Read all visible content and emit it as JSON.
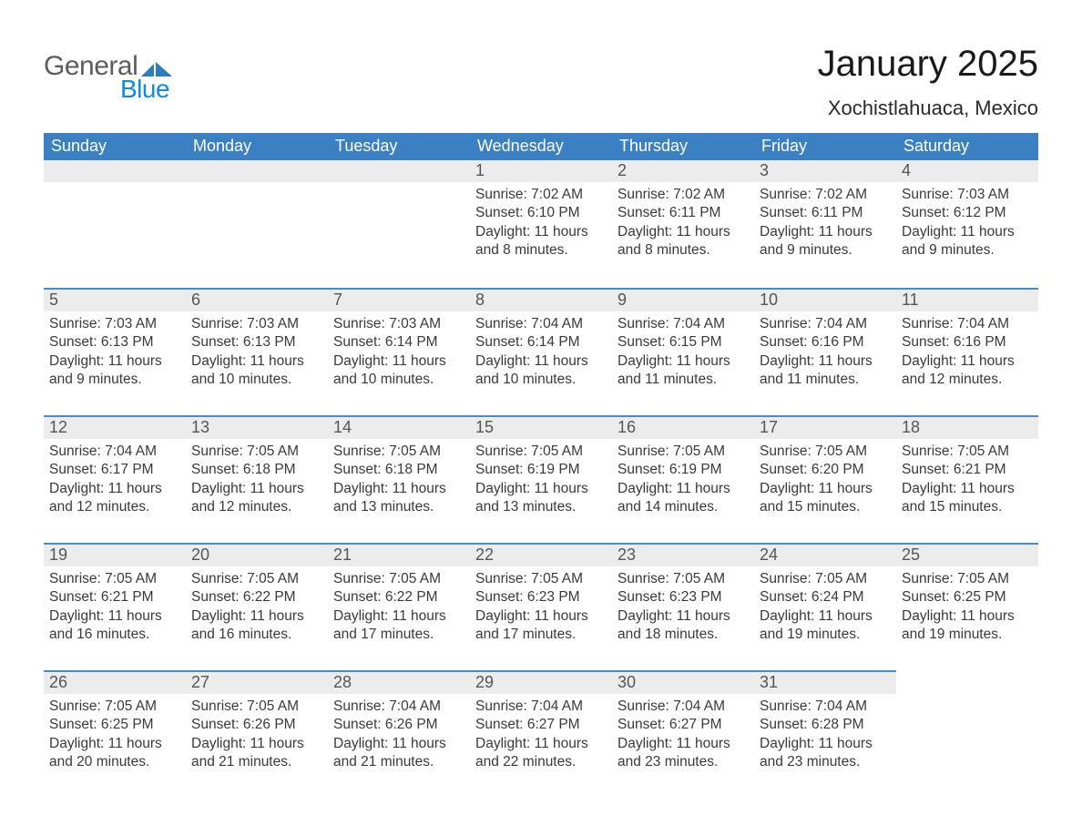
{
  "logo": {
    "text1": "General",
    "text2": "Blue"
  },
  "header": {
    "month_title": "January 2025",
    "location": "Xochistlahuaca, Mexico"
  },
  "colors": {
    "header_blue": "#3a80c3",
    "row_top_line": "#4a8acb",
    "row_band": "#ececec",
    "logo_blue": "#1189df",
    "text_dark": "#2a2a2a",
    "background": "#ffffff"
  },
  "calendar": {
    "day_headers": [
      "Sunday",
      "Monday",
      "Tuesday",
      "Wednesday",
      "Thursday",
      "Friday",
      "Saturday"
    ],
    "weeks": [
      [
        {
          "day": "",
          "sunrise": "",
          "sunset": "",
          "daylight": ""
        },
        {
          "day": "",
          "sunrise": "",
          "sunset": "",
          "daylight": ""
        },
        {
          "day": "",
          "sunrise": "",
          "sunset": "",
          "daylight": ""
        },
        {
          "day": "1",
          "sunrise": "Sunrise: 7:02 AM",
          "sunset": "Sunset: 6:10 PM",
          "daylight": "Daylight: 11 hours and 8 minutes."
        },
        {
          "day": "2",
          "sunrise": "Sunrise: 7:02 AM",
          "sunset": "Sunset: 6:11 PM",
          "daylight": "Daylight: 11 hours and 8 minutes."
        },
        {
          "day": "3",
          "sunrise": "Sunrise: 7:02 AM",
          "sunset": "Sunset: 6:11 PM",
          "daylight": "Daylight: 11 hours and 9 minutes."
        },
        {
          "day": "4",
          "sunrise": "Sunrise: 7:03 AM",
          "sunset": "Sunset: 6:12 PM",
          "daylight": "Daylight: 11 hours and 9 minutes."
        }
      ],
      [
        {
          "day": "5",
          "sunrise": "Sunrise: 7:03 AM",
          "sunset": "Sunset: 6:13 PM",
          "daylight": "Daylight: 11 hours and 9 minutes."
        },
        {
          "day": "6",
          "sunrise": "Sunrise: 7:03 AM",
          "sunset": "Sunset: 6:13 PM",
          "daylight": "Daylight: 11 hours and 10 minutes."
        },
        {
          "day": "7",
          "sunrise": "Sunrise: 7:03 AM",
          "sunset": "Sunset: 6:14 PM",
          "daylight": "Daylight: 11 hours and 10 minutes."
        },
        {
          "day": "8",
          "sunrise": "Sunrise: 7:04 AM",
          "sunset": "Sunset: 6:14 PM",
          "daylight": "Daylight: 11 hours and 10 minutes."
        },
        {
          "day": "9",
          "sunrise": "Sunrise: 7:04 AM",
          "sunset": "Sunset: 6:15 PM",
          "daylight": "Daylight: 11 hours and 11 minutes."
        },
        {
          "day": "10",
          "sunrise": "Sunrise: 7:04 AM",
          "sunset": "Sunset: 6:16 PM",
          "daylight": "Daylight: 11 hours and 11 minutes."
        },
        {
          "day": "11",
          "sunrise": "Sunrise: 7:04 AM",
          "sunset": "Sunset: 6:16 PM",
          "daylight": "Daylight: 11 hours and 12 minutes."
        }
      ],
      [
        {
          "day": "12",
          "sunrise": "Sunrise: 7:04 AM",
          "sunset": "Sunset: 6:17 PM",
          "daylight": "Daylight: 11 hours and 12 minutes."
        },
        {
          "day": "13",
          "sunrise": "Sunrise: 7:05 AM",
          "sunset": "Sunset: 6:18 PM",
          "daylight": "Daylight: 11 hours and 12 minutes."
        },
        {
          "day": "14",
          "sunrise": "Sunrise: 7:05 AM",
          "sunset": "Sunset: 6:18 PM",
          "daylight": "Daylight: 11 hours and 13 minutes."
        },
        {
          "day": "15",
          "sunrise": "Sunrise: 7:05 AM",
          "sunset": "Sunset: 6:19 PM",
          "daylight": "Daylight: 11 hours and 13 minutes."
        },
        {
          "day": "16",
          "sunrise": "Sunrise: 7:05 AM",
          "sunset": "Sunset: 6:19 PM",
          "daylight": "Daylight: 11 hours and 14 minutes."
        },
        {
          "day": "17",
          "sunrise": "Sunrise: 7:05 AM",
          "sunset": "Sunset: 6:20 PM",
          "daylight": "Daylight: 11 hours and 15 minutes."
        },
        {
          "day": "18",
          "sunrise": "Sunrise: 7:05 AM",
          "sunset": "Sunset: 6:21 PM",
          "daylight": "Daylight: 11 hours and 15 minutes."
        }
      ],
      [
        {
          "day": "19",
          "sunrise": "Sunrise: 7:05 AM",
          "sunset": "Sunset: 6:21 PM",
          "daylight": "Daylight: 11 hours and 16 minutes."
        },
        {
          "day": "20",
          "sunrise": "Sunrise: 7:05 AM",
          "sunset": "Sunset: 6:22 PM",
          "daylight": "Daylight: 11 hours and 16 minutes."
        },
        {
          "day": "21",
          "sunrise": "Sunrise: 7:05 AM",
          "sunset": "Sunset: 6:22 PM",
          "daylight": "Daylight: 11 hours and 17 minutes."
        },
        {
          "day": "22",
          "sunrise": "Sunrise: 7:05 AM",
          "sunset": "Sunset: 6:23 PM",
          "daylight": "Daylight: 11 hours and 17 minutes."
        },
        {
          "day": "23",
          "sunrise": "Sunrise: 7:05 AM",
          "sunset": "Sunset: 6:23 PM",
          "daylight": "Daylight: 11 hours and 18 minutes."
        },
        {
          "day": "24",
          "sunrise": "Sunrise: 7:05 AM",
          "sunset": "Sunset: 6:24 PM",
          "daylight": "Daylight: 11 hours and 19 minutes."
        },
        {
          "day": "25",
          "sunrise": "Sunrise: 7:05 AM",
          "sunset": "Sunset: 6:25 PM",
          "daylight": "Daylight: 11 hours and 19 minutes."
        }
      ],
      [
        {
          "day": "26",
          "sunrise": "Sunrise: 7:05 AM",
          "sunset": "Sunset: 6:25 PM",
          "daylight": "Daylight: 11 hours and 20 minutes."
        },
        {
          "day": "27",
          "sunrise": "Sunrise: 7:05 AM",
          "sunset": "Sunset: 6:26 PM",
          "daylight": "Daylight: 11 hours and 21 minutes."
        },
        {
          "day": "28",
          "sunrise": "Sunrise: 7:04 AM",
          "sunset": "Sunset: 6:26 PM",
          "daylight": "Daylight: 11 hours and 21 minutes."
        },
        {
          "day": "29",
          "sunrise": "Sunrise: 7:04 AM",
          "sunset": "Sunset: 6:27 PM",
          "daylight": "Daylight: 11 hours and 22 minutes."
        },
        {
          "day": "30",
          "sunrise": "Sunrise: 7:04 AM",
          "sunset": "Sunset: 6:27 PM",
          "daylight": "Daylight: 11 hours and 23 minutes."
        },
        {
          "day": "31",
          "sunrise": "Sunrise: 7:04 AM",
          "sunset": "Sunset: 6:28 PM",
          "daylight": "Daylight: 11 hours and 23 minutes."
        },
        {
          "day": "",
          "sunrise": "",
          "sunset": "",
          "daylight": ""
        }
      ]
    ]
  }
}
